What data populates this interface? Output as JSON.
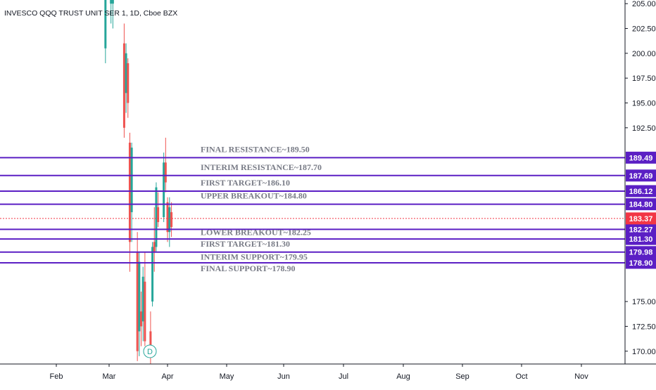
{
  "header": {
    "title": "INVESCO QQQ TRUST UNIT SER 1, 1D, Cboe BZX"
  },
  "chart_data": {
    "type": "candlestick",
    "symbol": "INVESCO QQQ TRUST UNIT SER 1",
    "interval": "1D",
    "exchange": "Cboe BZX",
    "y_ticks": [
      205.0,
      202.5,
      200.0,
      197.5,
      195.0,
      192.5,
      175.0,
      172.5,
      170.0
    ],
    "y_tick_labels": [
      "205.00",
      "202.50",
      "200.00",
      "197.50",
      "195.00",
      "192.50",
      "175.00",
      "172.50",
      "170.00"
    ],
    "ylim": [
      168.5,
      205.3
    ],
    "x_labels": [
      "Feb",
      "Mar",
      "Apr",
      "May",
      "Jun",
      "Jul",
      "Aug",
      "Sep",
      "Oct",
      "Nov"
    ],
    "levels": [
      {
        "label": "FINAL RESISTANCE~189.50",
        "value": 189.49,
        "badge": "189.49",
        "color": "#5b1fc4"
      },
      {
        "label": "INTERIM RESISTANCE~187.70",
        "value": 187.69,
        "badge": "187.69",
        "color": "#5b1fc4"
      },
      {
        "label": "FIRST TARGET~186.10",
        "value": 186.12,
        "badge": "186.12",
        "color": "#5b1fc4"
      },
      {
        "label": "UPPER BREAKOUT~184.80",
        "value": 184.8,
        "badge": "184.80",
        "color": "#5b1fc4"
      },
      {
        "label": "LOWER BREAKOUT~182.25",
        "value": 182.27,
        "badge": "182.27",
        "color": "#5b1fc4"
      },
      {
        "label": "FIRST TARGET~181.30",
        "value": 181.3,
        "badge": "181.30",
        "color": "#5b1fc4"
      },
      {
        "label": "INTERIM SUPPORT~179.95",
        "value": 179.98,
        "badge": "179.98",
        "color": "#5b1fc4"
      },
      {
        "label": "FINAL SUPPORT~178.90",
        "value": 178.9,
        "badge": "178.90",
        "color": "#5b1fc4"
      }
    ],
    "last_price": {
      "value": 183.37,
      "badge": "183.37",
      "color": "#f23645"
    },
    "marker": {
      "text": "D",
      "color": "#26a69a"
    },
    "colors": {
      "up": "#26a69a",
      "down": "#ef5350",
      "level": "#5b1fc4",
      "last": "#f23645"
    },
    "candles": [
      {
        "day": "2020-02-28",
        "o": 200.5,
        "h": 206.0,
        "l": 199.0,
        "c": 205.5
      },
      {
        "day": "2020-03-02",
        "o": 205.0,
        "h": 207.0,
        "l": 203.0,
        "c": 206.0
      },
      {
        "day": "2020-03-03",
        "o": 205.0,
        "h": 206.5,
        "l": 202.5,
        "c": 205.5
      },
      {
        "day": "2020-03-09",
        "o": 201.0,
        "h": 203.0,
        "l": 191.5,
        "c": 192.5
      },
      {
        "day": "2020-03-10",
        "o": 196.0,
        "h": 201.0,
        "l": 194.0,
        "c": 200.0
      },
      {
        "day": "2020-03-11",
        "o": 199.0,
        "h": 199.5,
        "l": 193.5,
        "c": 195.0
      },
      {
        "day": "2020-03-12",
        "o": 191.0,
        "h": 192.0,
        "l": 178.0,
        "c": 181.0
      },
      {
        "day": "2020-03-13",
        "o": 184.0,
        "h": 191.0,
        "l": 181.0,
        "c": 190.5
      },
      {
        "day": "2020-03-16",
        "o": 180.0,
        "h": 182.0,
        "l": 169.0,
        "c": 170.0
      },
      {
        "day": "2020-03-17",
        "o": 172.0,
        "h": 180.0,
        "l": 169.5,
        "c": 179.0
      },
      {
        "day": "2020-03-18",
        "o": 174.0,
        "h": 176.0,
        "l": 170.5,
        "c": 172.5
      },
      {
        "day": "2020-03-19",
        "o": 173.0,
        "h": 178.5,
        "l": 171.0,
        "c": 177.5
      },
      {
        "day": "2020-03-20",
        "o": 177.0,
        "h": 180.0,
        "l": 170.5,
        "c": 171.0
      },
      {
        "day": "2020-03-23",
        "o": 172.0,
        "h": 174.0,
        "l": 168.5,
        "c": 170.5
      },
      {
        "day": "2020-03-24",
        "o": 175.0,
        "h": 181.0,
        "l": 174.5,
        "c": 180.5
      },
      {
        "day": "2020-03-25",
        "o": 181.0,
        "h": 184.5,
        "l": 178.0,
        "c": 180.0
      },
      {
        "day": "2020-03-26",
        "o": 180.5,
        "h": 187.0,
        "l": 180.0,
        "c": 186.5
      },
      {
        "day": "2020-03-27",
        "o": 184.5,
        "h": 186.0,
        "l": 182.5,
        "c": 183.0
      },
      {
        "day": "2020-03-30",
        "o": 183.5,
        "h": 190.0,
        "l": 183.0,
        "c": 189.0
      },
      {
        "day": "2020-03-31",
        "o": 189.0,
        "h": 191.5,
        "l": 186.0,
        "c": 187.0
      },
      {
        "day": "2020-04-01",
        "o": 185.0,
        "h": 185.5,
        "l": 181.0,
        "c": 182.0
      },
      {
        "day": "2020-04-02",
        "o": 182.0,
        "h": 185.5,
        "l": 180.5,
        "c": 184.5
      },
      {
        "day": "2020-04-03",
        "o": 184.0,
        "h": 185.0,
        "l": 181.5,
        "c": 182.5
      }
    ]
  }
}
